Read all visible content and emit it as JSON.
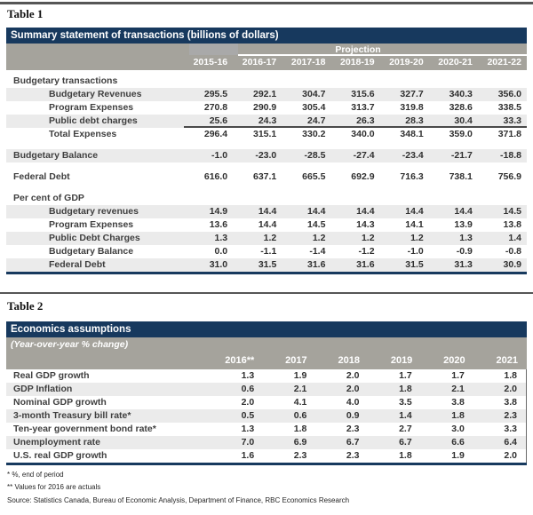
{
  "page": {
    "table1_label": "Table 1",
    "table2_label": "Table 2"
  },
  "colors": {
    "navy_header": "#17395E",
    "band_gray": "#A5A39C",
    "row_shade": "#EBEBEB"
  },
  "table1": {
    "title": "Summary statement of transactions (billions of dollars)",
    "projection_label": "Projection",
    "col_headers": [
      "2015-16",
      "2016-17",
      "2017-18",
      "2018-19",
      "2019-20",
      "2020-21",
      "2021-22"
    ],
    "rows": [
      {
        "label": "Budgetary transactions",
        "type": "section",
        "values": []
      },
      {
        "label": "Budgetary Revenues",
        "indent": true,
        "shaded": true,
        "values": [
          "295.5",
          "292.1",
          "304.7",
          "315.6",
          "327.7",
          "340.3",
          "356.0"
        ]
      },
      {
        "label": "Program Expenses",
        "indent": true,
        "values": [
          "270.8",
          "290.9",
          "305.4",
          "313.7",
          "319.8",
          "328.6",
          "338.5"
        ]
      },
      {
        "label": "Public debt charges",
        "indent": true,
        "shaded": true,
        "rule_below": true,
        "values": [
          "25.6",
          "24.3",
          "24.7",
          "26.3",
          "28.3",
          "30.4",
          "33.3"
        ]
      },
      {
        "label": "Total Expenses",
        "indent": true,
        "values": [
          "296.4",
          "315.1",
          "330.2",
          "340.0",
          "348.1",
          "359.0",
          "371.8"
        ]
      },
      {
        "spacer": true
      },
      {
        "label": "Budgetary Balance",
        "shaded": true,
        "values": [
          "-1.0",
          "-23.0",
          "-28.5",
          "-27.4",
          "-23.4",
          "-21.7",
          "-18.8"
        ]
      },
      {
        "spacer": true
      },
      {
        "label": "Federal Debt",
        "values": [
          "616.0",
          "637.1",
          "665.5",
          "692.9",
          "716.3",
          "738.1",
          "756.9"
        ]
      },
      {
        "spacer": true
      },
      {
        "label": "Per cent of GDP",
        "type": "section",
        "values": []
      },
      {
        "label": "Budgetary revenues",
        "indent": true,
        "shaded": true,
        "values": [
          "14.9",
          "14.4",
          "14.4",
          "14.4",
          "14.4",
          "14.4",
          "14.5"
        ]
      },
      {
        "label": "Program Expenses",
        "indent": true,
        "values": [
          "13.6",
          "14.4",
          "14.5",
          "14.3",
          "14.1",
          "13.9",
          "13.8"
        ]
      },
      {
        "label": "Public Debt Charges",
        "indent": true,
        "shaded": true,
        "values": [
          "1.3",
          "1.2",
          "1.2",
          "1.2",
          "1.2",
          "1.3",
          "1.4"
        ]
      },
      {
        "label": "Budgetary Balance",
        "indent": true,
        "values": [
          "0.0",
          "-1.1",
          "-1.4",
          "-1.2",
          "-1.0",
          "-0.9",
          "-0.8"
        ]
      },
      {
        "label": "Federal Debt",
        "indent": true,
        "shaded": true,
        "values": [
          "31.0",
          "31.5",
          "31.6",
          "31.6",
          "31.5",
          "31.3",
          "30.9"
        ]
      }
    ]
  },
  "table2": {
    "title": "Economics assumptions",
    "subtitle": "(Year-over-year % change)",
    "col_headers": [
      "2016**",
      "2017",
      "2018",
      "2019",
      "2020",
      "2021"
    ],
    "rows": [
      {
        "label": "Real GDP growth",
        "values": [
          "1.3",
          "1.9",
          "2.0",
          "1.7",
          "1.7",
          "1.8"
        ]
      },
      {
        "label": "GDP Inflation",
        "shaded": true,
        "values": [
          "0.6",
          "2.1",
          "2.0",
          "1.8",
          "2.1",
          "2.0"
        ]
      },
      {
        "label": "Nominal GDP growth",
        "values": [
          "2.0",
          "4.1",
          "4.0",
          "3.5",
          "3.8",
          "3.8"
        ]
      },
      {
        "label": "3-month Treasury bill rate*",
        "shaded": true,
        "values": [
          "0.5",
          "0.6",
          "0.9",
          "1.4",
          "1.8",
          "2.3"
        ]
      },
      {
        "label": "Ten-year government bond rate*",
        "values": [
          "1.3",
          "1.8",
          "2.3",
          "2.7",
          "3.0",
          "3.3"
        ]
      },
      {
        "label": "Unemployment rate",
        "shaded": true,
        "values": [
          "7.0",
          "6.9",
          "6.7",
          "6.7",
          "6.6",
          "6.4"
        ]
      },
      {
        "label": "U.S. real GDP growth",
        "values": [
          "1.6",
          "2.3",
          "2.3",
          "1.8",
          "1.9",
          "2.0"
        ]
      }
    ]
  },
  "footnotes": {
    "note1": "* %, end of period",
    "note2": "** Values for 2016 are actuals",
    "source": "Source: Statistics Canada, Bureau of Economic Analysis, Department of Finance, RBC Economics Research"
  }
}
